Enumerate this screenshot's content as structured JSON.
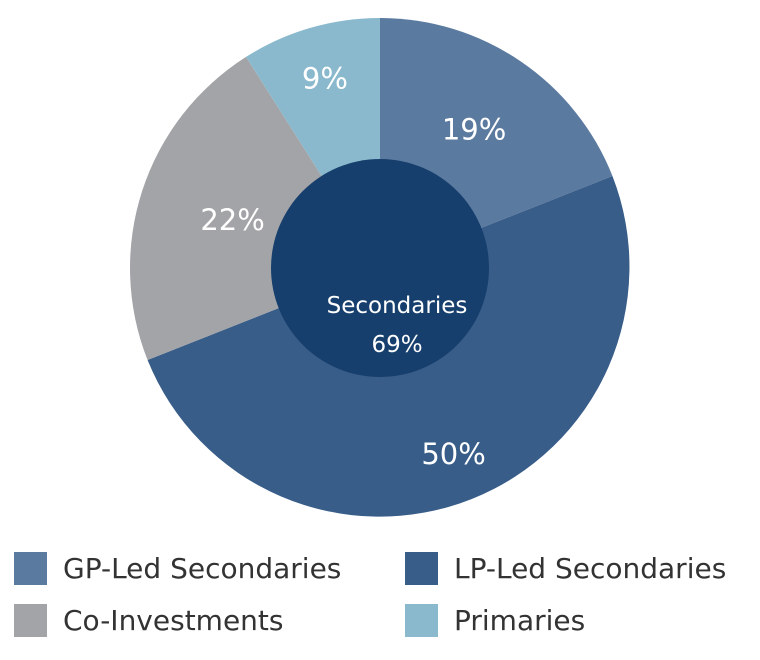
{
  "chart_data": {
    "type": "pie",
    "title": "",
    "categories": [
      "GP-Led Secondaries",
      "LP-Led Secondaries",
      "Co-Investments",
      "Primaries"
    ],
    "values": [
      19,
      50,
      22,
      9
    ],
    "slices": [
      {
        "name": "GP-Led Secondaries",
        "value": 19,
        "label": "19%",
        "color": "#5b7aa0"
      },
      {
        "name": "LP-Led Secondaries",
        "value": 50,
        "label": "50%",
        "color": "#385d89"
      },
      {
        "name": "Co-Investments",
        "value": 22,
        "label": "22%",
        "color": "#a3a4a7"
      },
      {
        "name": "Primaries",
        "value": 9,
        "label": "9%",
        "color": "#8ab9ce"
      }
    ],
    "center": {
      "label": "Secondaries",
      "value": "69%",
      "color": "#173f6d"
    },
    "legend_position": "bottom",
    "grid": false
  },
  "legend": {
    "items": [
      {
        "label": "GP-Led Secondaries",
        "color": "#5b7aa0"
      },
      {
        "label": "LP-Led Secondaries",
        "color": "#385d89"
      },
      {
        "label": "Co-Investments",
        "color": "#a3a4a7"
      },
      {
        "label": "Primaries",
        "color": "#8ab9ce"
      }
    ]
  }
}
